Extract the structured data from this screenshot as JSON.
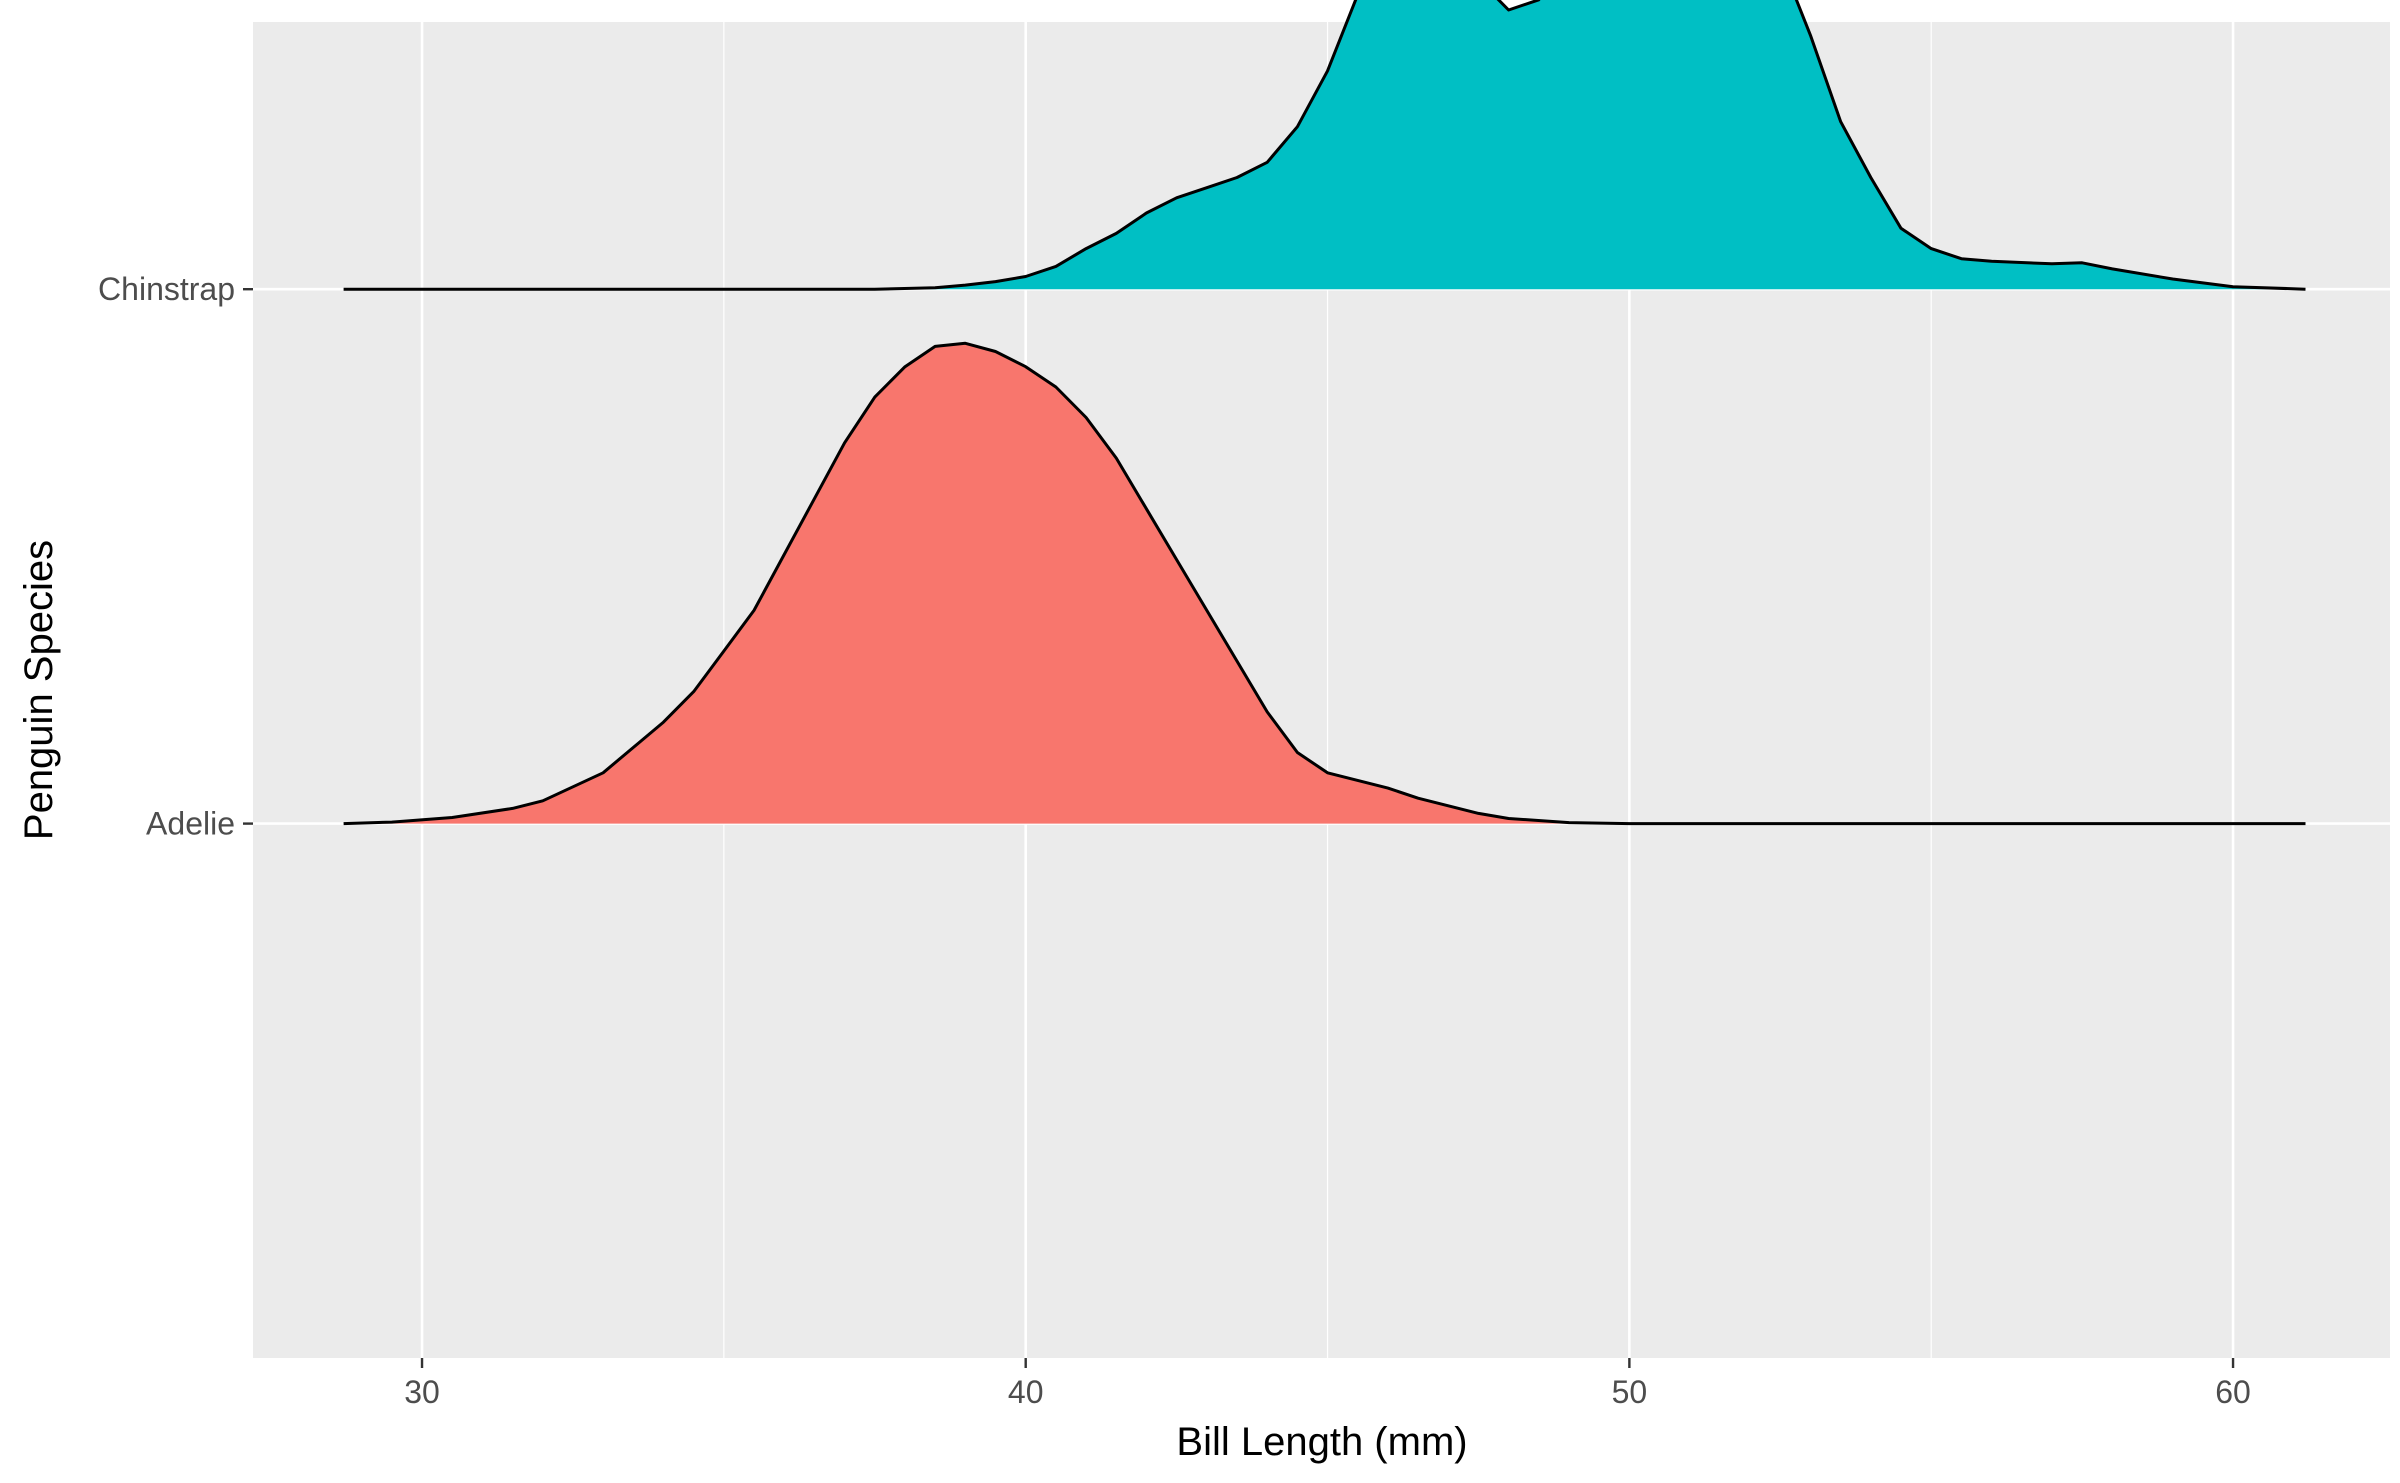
{
  "chart_data": {
    "type": "ridgeline",
    "title": "",
    "xlabel": "Bill Length (mm)",
    "ylabel": "Penguin Species",
    "xlim": [
      27.2,
      62.6
    ],
    "x_ticks": [
      30,
      40,
      50,
      60
    ],
    "grid": true,
    "legend": "none",
    "background": "#EBEBEB",
    "series": [
      {
        "name": "Adelie",
        "color": "#F8766D",
        "x_range": [
          28.7,
          61.2
        ],
        "peak_height": 0.95,
        "density": [
          [
            28.7,
            0.0
          ],
          [
            29.5,
            0.003
          ],
          [
            30.5,
            0.012
          ],
          [
            31.5,
            0.03
          ],
          [
            32.0,
            0.045
          ],
          [
            33.0,
            0.1
          ],
          [
            34.0,
            0.2
          ],
          [
            34.5,
            0.26
          ],
          [
            35.0,
            0.34
          ],
          [
            35.5,
            0.42
          ],
          [
            36.0,
            0.53
          ],
          [
            36.5,
            0.64
          ],
          [
            37.0,
            0.75
          ],
          [
            37.5,
            0.84
          ],
          [
            38.0,
            0.9
          ],
          [
            38.5,
            0.94
          ],
          [
            39.0,
            0.946
          ],
          [
            39.5,
            0.93
          ],
          [
            40.0,
            0.9
          ],
          [
            40.5,
            0.86
          ],
          [
            41.0,
            0.8
          ],
          [
            41.5,
            0.72
          ],
          [
            42.0,
            0.62
          ],
          [
            42.5,
            0.52
          ],
          [
            43.0,
            0.42
          ],
          [
            43.5,
            0.32
          ],
          [
            44.0,
            0.22
          ],
          [
            44.5,
            0.14
          ],
          [
            45.0,
            0.1
          ],
          [
            45.5,
            0.085
          ],
          [
            46.0,
            0.07
          ],
          [
            46.5,
            0.05
          ],
          [
            47.0,
            0.035
          ],
          [
            47.5,
            0.02
          ],
          [
            48.0,
            0.01
          ],
          [
            49.0,
            0.002
          ],
          [
            50.0,
            0.0
          ],
          [
            61.2,
            0.0
          ]
        ]
      },
      {
        "name": "Chinstrap",
        "color": "#00BFC4",
        "x_range": [
          28.7,
          61.2
        ],
        "peak_height": 1.0,
        "density": [
          [
            28.7,
            0.0
          ],
          [
            37.5,
            0.0
          ],
          [
            38.5,
            0.003
          ],
          [
            39.0,
            0.008
          ],
          [
            39.5,
            0.015
          ],
          [
            40.0,
            0.025
          ],
          [
            40.5,
            0.045
          ],
          [
            41.0,
            0.08
          ],
          [
            41.5,
            0.11
          ],
          [
            42.0,
            0.15
          ],
          [
            42.5,
            0.18
          ],
          [
            43.0,
            0.2
          ],
          [
            43.5,
            0.22
          ],
          [
            44.0,
            0.25
          ],
          [
            44.5,
            0.32
          ],
          [
            45.0,
            0.43
          ],
          [
            45.5,
            0.58
          ],
          [
            46.0,
            0.66
          ],
          [
            46.4,
            0.73
          ],
          [
            47.0,
            0.69
          ],
          [
            47.5,
            0.61
          ],
          [
            48.0,
            0.55
          ],
          [
            48.5,
            0.57
          ],
          [
            49.0,
            0.67
          ],
          [
            49.5,
            0.8
          ],
          [
            50.0,
            0.9
          ],
          [
            50.5,
            0.97
          ],
          [
            50.9,
            1.0
          ],
          [
            51.5,
            0.95
          ],
          [
            52.0,
            0.82
          ],
          [
            52.5,
            0.65
          ],
          [
            53.0,
            0.5
          ],
          [
            53.5,
            0.33
          ],
          [
            54.0,
            0.22
          ],
          [
            54.5,
            0.12
          ],
          [
            55.0,
            0.08
          ],
          [
            55.5,
            0.06
          ],
          [
            56.0,
            0.055
          ],
          [
            57.0,
            0.05
          ],
          [
            57.5,
            0.052
          ],
          [
            58.0,
            0.04
          ],
          [
            59.0,
            0.02
          ],
          [
            60.0,
            0.005
          ],
          [
            61.2,
            0.0
          ]
        ]
      }
    ]
  }
}
